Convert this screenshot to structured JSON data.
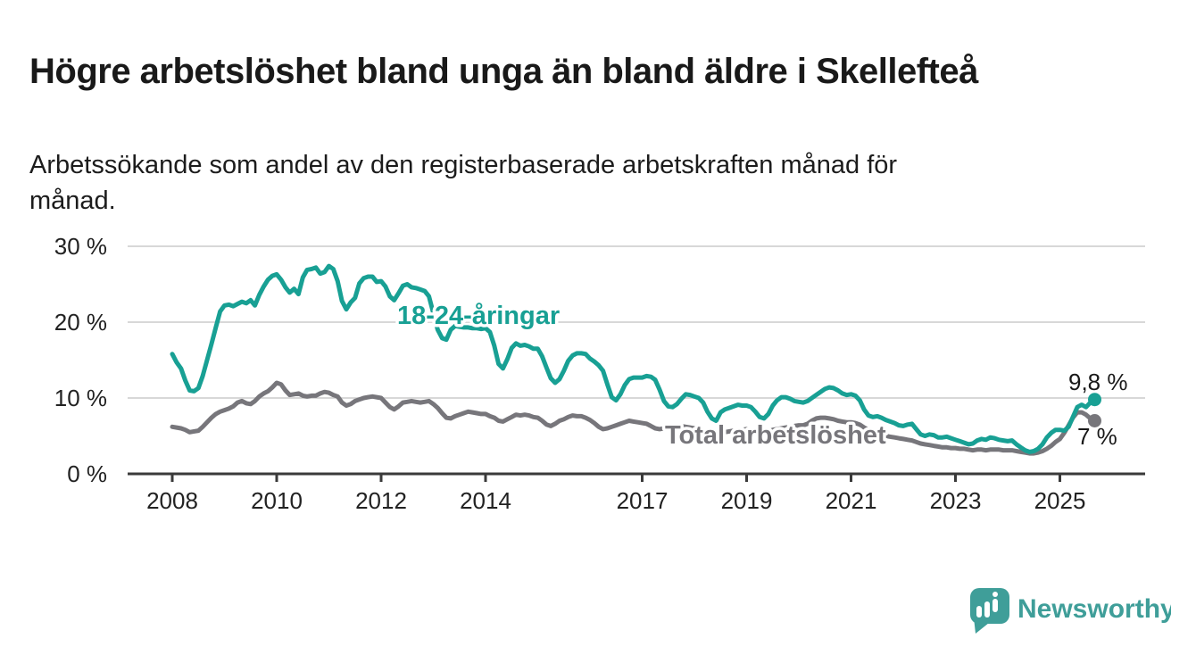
{
  "chart_data": {
    "type": "line",
    "title": "Högre arbetslöshet bland unga än bland äldre i Skellefteå",
    "subtitle": "Arbetssökande som andel av den registerbaserade arbetskraften månad för månad.",
    "x_start": "2008-01",
    "x_end": "2025-09",
    "x_frequency": "monthly",
    "x_tick_years": [
      2008,
      2010,
      2012,
      2014,
      2017,
      2019,
      2021,
      2023,
      2025
    ],
    "y_ticks": [
      0,
      10,
      20,
      30
    ],
    "y_tick_labels": [
      "0 %",
      "10 %",
      "20 %",
      "30 %"
    ],
    "ylim": [
      0,
      30
    ],
    "grid": "horizontal",
    "legend_position": "inline-labels",
    "series": [
      {
        "name": "18-24-åringar",
        "color": "#18a094",
        "end_label": "9,8 %",
        "end_value": 9.8,
        "values": [
          15.8,
          14.7,
          13.9,
          12.3,
          11.0,
          10.9,
          11.3,
          12.9,
          15.0,
          17.1,
          19.3,
          21.4,
          22.2,
          22.3,
          22.1,
          22.4,
          22.7,
          22.5,
          22.9,
          22.2,
          23.6,
          24.7,
          25.6,
          26.1,
          26.3,
          25.6,
          24.6,
          23.9,
          24.4,
          23.7,
          25.9,
          26.9,
          27.0,
          27.2,
          26.4,
          26.6,
          27.4,
          27.0,
          25.4,
          22.8,
          21.7,
          22.6,
          23.2,
          25.1,
          25.8,
          26.0,
          26.0,
          25.3,
          25.4,
          24.7,
          23.4,
          22.9,
          23.8,
          24.8,
          25.0,
          24.6,
          24.5,
          24.3,
          24.1,
          23.4,
          21.2,
          19.0,
          17.9,
          17.7,
          19.0,
          19.5,
          19.4,
          19.3,
          19.3,
          19.2,
          19.2,
          19.1,
          19.2,
          18.7,
          16.9,
          14.5,
          13.9,
          15.1,
          16.6,
          17.2,
          16.9,
          17.0,
          16.8,
          16.5,
          16.5,
          15.5,
          14.0,
          12.6,
          12.0,
          12.5,
          13.6,
          14.9,
          15.6,
          15.9,
          15.9,
          15.8,
          15.2,
          14.8,
          14.3,
          13.6,
          11.8,
          10.1,
          9.7,
          10.5,
          11.7,
          12.5,
          12.7,
          12.7,
          12.7,
          12.9,
          12.8,
          12.4,
          11.1,
          9.6,
          8.9,
          8.8,
          9.2,
          9.9,
          10.5,
          10.4,
          10.2,
          10.0,
          9.4,
          8.2,
          7.3,
          7.0,
          8.1,
          8.5,
          8.7,
          8.9,
          9.1,
          9.0,
          9.0,
          8.8,
          8.2,
          7.5,
          7.3,
          7.9,
          9.0,
          9.7,
          10.1,
          10.1,
          9.9,
          9.6,
          9.5,
          9.4,
          9.6,
          10.0,
          10.4,
          10.8,
          11.2,
          11.4,
          11.3,
          11.0,
          10.6,
          10.4,
          10.5,
          10.3,
          9.7,
          8.5,
          7.7,
          7.5,
          7.6,
          7.4,
          7.1,
          6.9,
          6.7,
          6.4,
          6.3,
          6.5,
          6.6,
          5.9,
          5.2,
          5.0,
          5.2,
          5.1,
          4.8,
          4.8,
          4.9,
          4.7,
          4.5,
          4.3,
          4.1,
          3.9,
          4.0,
          4.4,
          4.6,
          4.5,
          4.8,
          4.7,
          4.5,
          4.4,
          4.3,
          4.4,
          3.9,
          3.5,
          3.1,
          2.9,
          3.0,
          3.3,
          3.9,
          4.8,
          5.4,
          5.8,
          5.8,
          5.7,
          6.2,
          7.5,
          8.8,
          9.1,
          8.8,
          9.4,
          9.8
        ]
      },
      {
        "name": "Total arbetslöshet",
        "color": "#77767b",
        "end_label": "7 %",
        "end_value": 7.0,
        "values": [
          6.2,
          6.1,
          6.0,
          5.8,
          5.5,
          5.6,
          5.7,
          6.2,
          6.8,
          7.4,
          7.9,
          8.2,
          8.4,
          8.6,
          8.9,
          9.4,
          9.6,
          9.3,
          9.2,
          9.6,
          10.2,
          10.6,
          10.9,
          11.4,
          12.0,
          11.8,
          11.0,
          10.4,
          10.5,
          10.6,
          10.3,
          10.2,
          10.3,
          10.3,
          10.6,
          10.8,
          10.7,
          10.4,
          10.2,
          9.4,
          9.0,
          9.2,
          9.6,
          9.8,
          10.0,
          10.1,
          10.2,
          10.1,
          10.0,
          9.4,
          8.8,
          8.5,
          8.9,
          9.4,
          9.5,
          9.6,
          9.5,
          9.4,
          9.5,
          9.6,
          9.2,
          8.7,
          8.0,
          7.4,
          7.3,
          7.6,
          7.8,
          8.0,
          8.2,
          8.1,
          8.0,
          7.9,
          7.9,
          7.6,
          7.4,
          7.0,
          6.9,
          7.2,
          7.5,
          7.8,
          7.7,
          7.8,
          7.7,
          7.5,
          7.4,
          7.0,
          6.5,
          6.3,
          6.6,
          7.0,
          7.2,
          7.5,
          7.7,
          7.6,
          7.6,
          7.4,
          7.1,
          6.7,
          6.2,
          5.9,
          6.0,
          6.2,
          6.4,
          6.6,
          6.8,
          7.0,
          6.9,
          6.8,
          6.7,
          6.6,
          6.3,
          6.0,
          5.9,
          6.0,
          6.1,
          6.2,
          6.3,
          6.3,
          6.2,
          6.1,
          6.0,
          5.9,
          5.7,
          5.5,
          5.3,
          5.2,
          5.4,
          5.5,
          5.6,
          5.7,
          5.8,
          5.8,
          5.9,
          5.8,
          5.6,
          5.5,
          5.4,
          5.6,
          5.8,
          5.9,
          6.0,
          6.1,
          6.2,
          6.3,
          6.4,
          6.4,
          6.6,
          7.0,
          7.3,
          7.4,
          7.4,
          7.3,
          7.2,
          7.0,
          6.9,
          6.8,
          6.8,
          6.7,
          6.5,
          6.1,
          5.8,
          5.6,
          5.4,
          5.2,
          5.0,
          4.9,
          4.8,
          4.7,
          4.6,
          4.5,
          4.4,
          4.2,
          4.0,
          3.9,
          3.8,
          3.7,
          3.6,
          3.5,
          3.5,
          3.4,
          3.4,
          3.3,
          3.3,
          3.2,
          3.1,
          3.2,
          3.2,
          3.1,
          3.2,
          3.2,
          3.2,
          3.1,
          3.1,
          3.1,
          3.0,
          2.9,
          2.8,
          2.7,
          2.7,
          2.8,
          3.0,
          3.3,
          3.7,
          4.2,
          4.6,
          5.4,
          6.4,
          7.4,
          8.1,
          8.1,
          7.8,
          7.3,
          7.0
        ]
      }
    ],
    "style": {
      "gridline_color": "#d8d8d8",
      "axis_color": "#3a3a3a",
      "axis_text_color": "#222222",
      "end_label_color": "#191919",
      "background": "#ffffff"
    }
  },
  "branding": {
    "name": "Newsworthy",
    "color": "#3f9e99",
    "icon": "speech-bubble-bar-chart-icon"
  }
}
